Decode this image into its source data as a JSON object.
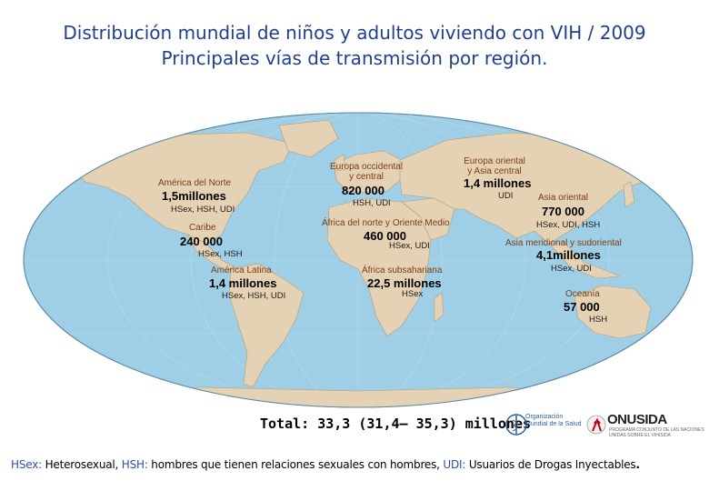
{
  "title": {
    "line1": "Distribución mundial de niños y adultos viviendo con VIH / 2009",
    "line2": "Principales vías de transmisión por región."
  },
  "regions": [
    {
      "name": "América del Norte",
      "value": "1,5millones",
      "routes": "HSex, HSH, UDI"
    },
    {
      "name": "Caribe",
      "value": "240 000",
      "routes": "HSex, HSH"
    },
    {
      "name": "América Latina",
      "value": "1,4 millones",
      "routes": "HSex, HSH, UDI"
    },
    {
      "name_line1": "Europa occidental",
      "name_line2": "y central",
      "value": "820 000",
      "routes": "HSH, UDI"
    },
    {
      "name": "África del norte y Oriente Medio",
      "value": "460 000",
      "routes": "HSex, UDI"
    },
    {
      "name": "África subsahariana",
      "value": "22,5 millones",
      "routes": "HSex"
    },
    {
      "name_line1": "Europa oriental",
      "name_line2": "y Asia central",
      "value": "1,4 millones",
      "routes": "UDI"
    },
    {
      "name": "Asia oriental",
      "value": "770 000",
      "routes": "HSex, UDI, HSH"
    },
    {
      "name": "Asia meridional y sudoriental",
      "value": "4,1millones",
      "routes": "HSex, UDI"
    },
    {
      "name": "Oceanía",
      "value": "57 000",
      "routes": "HSH"
    }
  ],
  "total": "Total: 33,3 (31,4– 35,3) millones",
  "logos": {
    "who_line1": "Organización",
    "who_line2": "Mundial de la Salud",
    "unaids": "ONUSIDA",
    "unaids_sub": "PROGRAMA CONJUNTO DE LAS NACIONES UNIDAS SOBRE EL VIH/SIDA"
  },
  "footnote": {
    "k1": "HSex:",
    "t1": " Heterosexual, ",
    "k2": "HSH:",
    "t2": " hombres que tienen relaciones sexuales con hombres, ",
    "k3": "UDI:",
    "t3": " Usuarios de Drogas Inyectables",
    "end": "."
  },
  "colors": {
    "ocean": "#9ecfe6",
    "land": "#e5d2b4",
    "region_label": "#7a3d12",
    "title": "#1f3f8f"
  }
}
